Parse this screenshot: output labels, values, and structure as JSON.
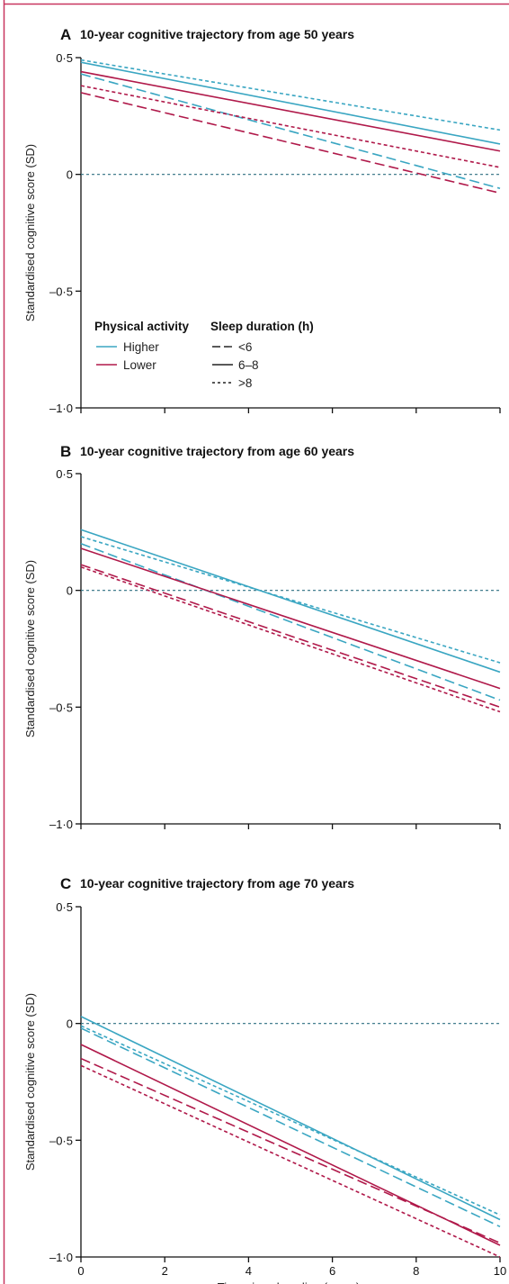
{
  "colors": {
    "higher": "#3aa6c2",
    "lower": "#b0194a",
    "axis": "#111111",
    "reference": "#2c6e80",
    "frame": "#c8355f"
  },
  "x_axis_label": "Time since baseline (years)",
  "legend": {
    "activity_title": "Physical activity",
    "sleep_title": "Sleep duration (h)",
    "activity_items": [
      {
        "key": "higher",
        "label": "Higher"
      },
      {
        "key": "lower",
        "label": "Lower"
      }
    ],
    "sleep_items": [
      {
        "key": "short",
        "label": "<6",
        "dash": "dashed"
      },
      {
        "key": "mid",
        "label": "6–8",
        "dash": "solid"
      },
      {
        "key": "long",
        "label": ">8",
        "dash": "dotted"
      }
    ]
  },
  "chart_data": [
    {
      "type": "line",
      "panel_letter": "A",
      "title": "10-year cognitive trajectory from age 50 years",
      "ylabel": "Standardised cognitive score (SD)",
      "xlabel": "",
      "xlim": [
        0,
        10
      ],
      "ylim": [
        -1.0,
        0.5
      ],
      "x_ticks": [
        0,
        2,
        4,
        6,
        8,
        10
      ],
      "x_tick_labels": [],
      "y_ticks": [
        0.5,
        0,
        -0.5,
        -1.0
      ],
      "y_tick_labels": [
        "0·5",
        "0",
        "–0·5",
        "–1·0"
      ],
      "reference_line": 0,
      "show_legend": true,
      "x": [
        0,
        10
      ],
      "series": [
        {
          "activity": "higher",
          "sleep": "short",
          "values": [
            0.43,
            -0.06
          ]
        },
        {
          "activity": "higher",
          "sleep": "mid",
          "values": [
            0.48,
            0.13
          ]
        },
        {
          "activity": "higher",
          "sleep": "long",
          "values": [
            0.49,
            0.19
          ]
        },
        {
          "activity": "lower",
          "sleep": "short",
          "values": [
            0.35,
            -0.08
          ]
        },
        {
          "activity": "lower",
          "sleep": "mid",
          "values": [
            0.44,
            0.1
          ]
        },
        {
          "activity": "lower",
          "sleep": "long",
          "values": [
            0.38,
            0.03
          ]
        }
      ]
    },
    {
      "type": "line",
      "panel_letter": "B",
      "title": "10-year cognitive trajectory from age 60 years",
      "ylabel": "Standardised cognitive score (SD)",
      "xlabel": "",
      "xlim": [
        0,
        10
      ],
      "ylim": [
        -1.0,
        0.5
      ],
      "x_ticks": [
        0,
        2,
        4,
        6,
        8,
        10
      ],
      "x_tick_labels": [],
      "y_ticks": [
        0.5,
        0,
        -0.5,
        -1.0
      ],
      "y_tick_labels": [
        "0·5",
        "0",
        "–0·5",
        "–1·0"
      ],
      "reference_line": 0,
      "show_legend": false,
      "x": [
        0,
        10
      ],
      "series": [
        {
          "activity": "higher",
          "sleep": "short",
          "values": [
            0.2,
            -0.47
          ]
        },
        {
          "activity": "higher",
          "sleep": "mid",
          "values": [
            0.26,
            -0.35
          ]
        },
        {
          "activity": "higher",
          "sleep": "long",
          "values": [
            0.23,
            -0.31
          ]
        },
        {
          "activity": "lower",
          "sleep": "short",
          "values": [
            0.11,
            -0.5
          ]
        },
        {
          "activity": "lower",
          "sleep": "mid",
          "values": [
            0.18,
            -0.42
          ]
        },
        {
          "activity": "lower",
          "sleep": "long",
          "values": [
            0.1,
            -0.52
          ]
        }
      ]
    },
    {
      "type": "line",
      "panel_letter": "C",
      "title": "10-year cognitive trajectory from age 70 years",
      "ylabel": "Standardised cognitive score (SD)",
      "xlabel": "Time since baseline (years)",
      "xlim": [
        0,
        10
      ],
      "ylim": [
        -1.0,
        0.5
      ],
      "x_ticks": [
        0,
        2,
        4,
        6,
        8,
        10
      ],
      "x_tick_labels": [
        "0",
        "2",
        "4",
        "6",
        "8",
        "10"
      ],
      "y_ticks": [
        0.5,
        0,
        -0.5,
        -1.0
      ],
      "y_tick_labels": [
        "0·5",
        "0",
        "–0·5",
        "–1·0"
      ],
      "reference_line": 0,
      "show_legend": false,
      "x": [
        0,
        10
      ],
      "series": [
        {
          "activity": "higher",
          "sleep": "short",
          "values": [
            -0.02,
            -0.87
          ]
        },
        {
          "activity": "higher",
          "sleep": "mid",
          "values": [
            0.03,
            -0.84
          ]
        },
        {
          "activity": "higher",
          "sleep": "long",
          "values": [
            -0.01,
            -0.82
          ]
        },
        {
          "activity": "lower",
          "sleep": "short",
          "values": [
            -0.15,
            -0.94
          ]
        },
        {
          "activity": "lower",
          "sleep": "mid",
          "values": [
            -0.09,
            -0.95
          ]
        },
        {
          "activity": "lower",
          "sleep": "long",
          "values": [
            -0.18,
            -1.0
          ]
        }
      ]
    }
  ]
}
